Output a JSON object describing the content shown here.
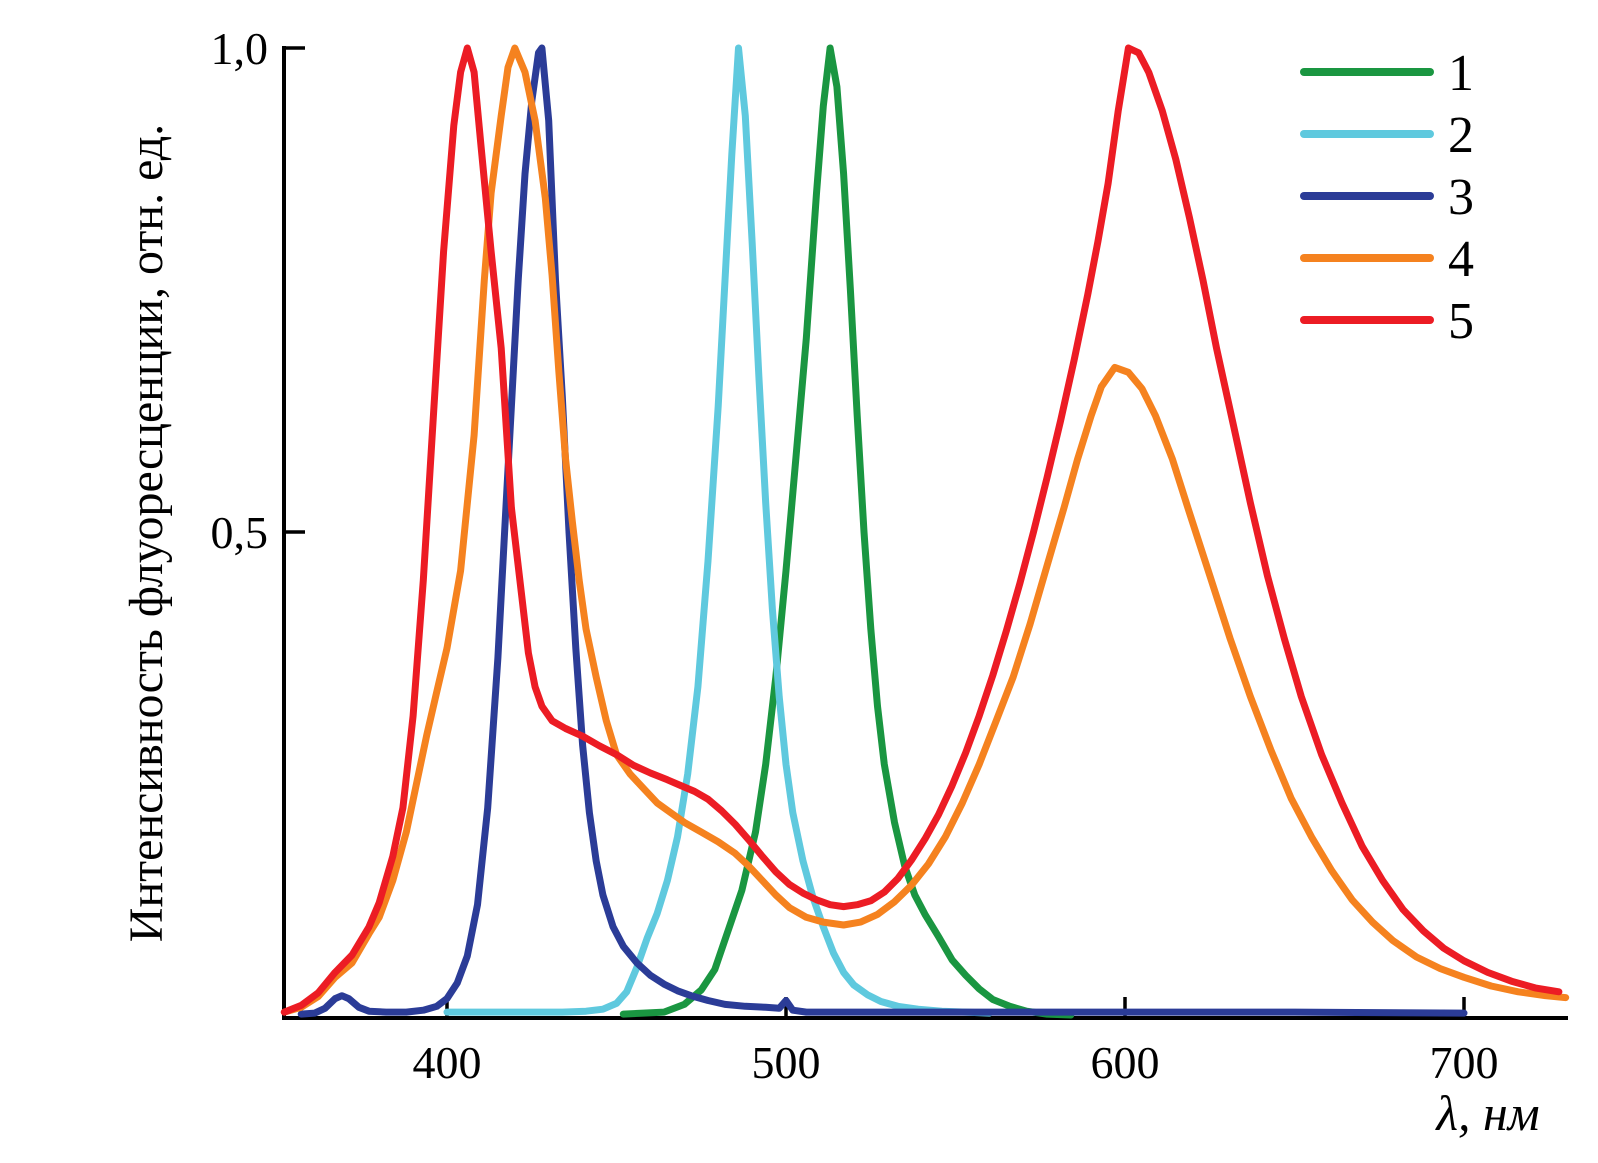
{
  "chart_data": {
    "type": "line",
    "title": "",
    "xlabel": "λ, нм",
    "ylabel": "Интенсивность флуоресценции, отн. ед.",
    "xlim": [
      352,
      731
    ],
    "ylim": [
      0,
      1.0
    ],
    "grid": false,
    "legend_position": "top-right",
    "x_ticks": [
      {
        "value": 400,
        "label": "400"
      },
      {
        "value": 500,
        "label": "500"
      },
      {
        "value": 600,
        "label": "600"
      },
      {
        "value": 700,
        "label": "700"
      }
    ],
    "y_ticks": [
      {
        "value": 1.0,
        "label": "1,0"
      },
      {
        "value": 0.5,
        "label": "0,5"
      }
    ],
    "axis_color": "#000000",
    "background_color": "#ffffff",
    "series": [
      {
        "name": "1",
        "color": "#1A9641",
        "points": [
          [
            452,
            0.002
          ],
          [
            458,
            0.003
          ],
          [
            464,
            0.004
          ],
          [
            470,
            0.012
          ],
          [
            475,
            0.027
          ],
          [
            479,
            0.048
          ],
          [
            483,
            0.089
          ],
          [
            487,
            0.13
          ],
          [
            491,
            0.19
          ],
          [
            494,
            0.26
          ],
          [
            497,
            0.35
          ],
          [
            500,
            0.46
          ],
          [
            503,
            0.58
          ],
          [
            506,
            0.7
          ],
          [
            509,
            0.85
          ],
          [
            511,
            0.94
          ],
          [
            513,
            1.0
          ],
          [
            515,
            0.96
          ],
          [
            517,
            0.87
          ],
          [
            519,
            0.75
          ],
          [
            521,
            0.62
          ],
          [
            523,
            0.5
          ],
          [
            525,
            0.4
          ],
          [
            527,
            0.32
          ],
          [
            529,
            0.26
          ],
          [
            532,
            0.2
          ],
          [
            535,
            0.155
          ],
          [
            538,
            0.125
          ],
          [
            541,
            0.105
          ],
          [
            545,
            0.082
          ],
          [
            549,
            0.058
          ],
          [
            553,
            0.042
          ],
          [
            557,
            0.028
          ],
          [
            561,
            0.017
          ],
          [
            566,
            0.01
          ],
          [
            571,
            0.005
          ],
          [
            577,
            0.002
          ],
          [
            584,
            0.001
          ]
        ]
      },
      {
        "name": "2",
        "color": "#5FC9DE",
        "points": [
          [
            400,
            0.004
          ],
          [
            412,
            0.004
          ],
          [
            424,
            0.004
          ],
          [
            434,
            0.004
          ],
          [
            441,
            0.005
          ],
          [
            446,
            0.007
          ],
          [
            450,
            0.013
          ],
          [
            453,
            0.025
          ],
          [
            456,
            0.05
          ],
          [
            459,
            0.08
          ],
          [
            462,
            0.106
          ],
          [
            465,
            0.14
          ],
          [
            468,
            0.185
          ],
          [
            471,
            0.25
          ],
          [
            474,
            0.34
          ],
          [
            477,
            0.47
          ],
          [
            480,
            0.63
          ],
          [
            482,
            0.76
          ],
          [
            484,
            0.89
          ],
          [
            486,
            1.0
          ],
          [
            488,
            0.93
          ],
          [
            490,
            0.8
          ],
          [
            492,
            0.66
          ],
          [
            494,
            0.53
          ],
          [
            496,
            0.42
          ],
          [
            498,
            0.33
          ],
          [
            500,
            0.26
          ],
          [
            502,
            0.21
          ],
          [
            505,
            0.16
          ],
          [
            508,
            0.122
          ],
          [
            511,
            0.092
          ],
          [
            514,
            0.065
          ],
          [
            517,
            0.045
          ],
          [
            520,
            0.032
          ],
          [
            524,
            0.022
          ],
          [
            528,
            0.015
          ],
          [
            533,
            0.01
          ],
          [
            539,
            0.007
          ],
          [
            546,
            0.005
          ],
          [
            553,
            0.004
          ],
          [
            560,
            0.003
          ]
        ]
      },
      {
        "name": "3",
        "color": "#2B3C97",
        "points": [
          [
            357,
            0.002
          ],
          [
            361,
            0.003
          ],
          [
            364,
            0.008
          ],
          [
            367,
            0.018
          ],
          [
            369,
            0.021
          ],
          [
            371,
            0.018
          ],
          [
            374,
            0.009
          ],
          [
            377,
            0.005
          ],
          [
            382,
            0.004
          ],
          [
            388,
            0.004
          ],
          [
            393,
            0.006
          ],
          [
            397,
            0.01
          ],
          [
            400,
            0.018
          ],
          [
            403,
            0.034
          ],
          [
            406,
            0.062
          ],
          [
            409,
            0.115
          ],
          [
            412,
            0.215
          ],
          [
            415,
            0.37
          ],
          [
            417,
            0.5
          ],
          [
            419,
            0.63
          ],
          [
            421,
            0.76
          ],
          [
            423,
            0.87
          ],
          [
            425,
            0.945
          ],
          [
            427,
            0.995
          ],
          [
            428,
            1.0
          ],
          [
            430,
            0.925
          ],
          [
            432,
            0.76
          ],
          [
            434,
            0.64
          ],
          [
            436,
            0.5
          ],
          [
            438,
            0.38
          ],
          [
            440,
            0.28
          ],
          [
            442,
            0.21
          ],
          [
            444,
            0.16
          ],
          [
            446,
            0.125
          ],
          [
            449,
            0.092
          ],
          [
            452,
            0.072
          ],
          [
            456,
            0.055
          ],
          [
            460,
            0.042
          ],
          [
            464,
            0.033
          ],
          [
            468,
            0.026
          ],
          [
            472,
            0.021
          ],
          [
            477,
            0.016
          ],
          [
            482,
            0.012
          ],
          [
            488,
            0.01
          ],
          [
            494,
            0.009
          ],
          [
            498,
            0.008
          ],
          [
            500,
            0.016
          ],
          [
            502,
            0.006
          ],
          [
            506,
            0.004
          ],
          [
            520,
            0.004
          ],
          [
            550,
            0.004
          ],
          [
            600,
            0.004
          ],
          [
            650,
            0.004
          ],
          [
            700,
            0.003
          ]
        ]
      },
      {
        "name": "4",
        "color": "#F5821F",
        "points": [
          [
            352,
            0.004
          ],
          [
            357,
            0.009
          ],
          [
            362,
            0.02
          ],
          [
            367,
            0.04
          ],
          [
            372,
            0.055
          ],
          [
            377,
            0.085
          ],
          [
            380,
            0.102
          ],
          [
            384,
            0.14
          ],
          [
            388,
            0.19
          ],
          [
            391,
            0.24
          ],
          [
            394,
            0.29
          ],
          [
            397,
            0.335
          ],
          [
            400,
            0.38
          ],
          [
            404,
            0.46
          ],
          [
            408,
            0.6
          ],
          [
            411,
            0.76
          ],
          [
            413,
            0.85
          ],
          [
            416,
            0.93
          ],
          [
            418,
            0.98
          ],
          [
            420,
            1.0
          ],
          [
            423,
            0.975
          ],
          [
            426,
            0.925
          ],
          [
            429,
            0.845
          ],
          [
            431,
            0.765
          ],
          [
            433,
            0.665
          ],
          [
            435,
            0.575
          ],
          [
            437,
            0.51
          ],
          [
            439,
            0.45
          ],
          [
            441,
            0.4
          ],
          [
            444,
            0.35
          ],
          [
            447,
            0.305
          ],
          [
            450,
            0.27
          ],
          [
            454,
            0.25
          ],
          [
            458,
            0.235
          ],
          [
            462,
            0.22
          ],
          [
            466,
            0.21
          ],
          [
            470,
            0.2
          ],
          [
            475,
            0.19
          ],
          [
            480,
            0.18
          ],
          [
            485,
            0.168
          ],
          [
            489,
            0.155
          ],
          [
            493,
            0.14
          ],
          [
            497,
            0.125
          ],
          [
            501,
            0.112
          ],
          [
            506,
            0.102
          ],
          [
            511,
            0.097
          ],
          [
            517,
            0.094
          ],
          [
            522,
            0.097
          ],
          [
            527,
            0.105
          ],
          [
            532,
            0.118
          ],
          [
            537,
            0.135
          ],
          [
            542,
            0.157
          ],
          [
            547,
            0.185
          ],
          [
            552,
            0.22
          ],
          [
            557,
            0.26
          ],
          [
            562,
            0.305
          ],
          [
            567,
            0.35
          ],
          [
            572,
            0.405
          ],
          [
            577,
            0.465
          ],
          [
            582,
            0.525
          ],
          [
            586,
            0.575
          ],
          [
            590,
            0.62
          ],
          [
            593,
            0.65
          ],
          [
            597,
            0.67
          ],
          [
            601,
            0.665
          ],
          [
            605,
            0.648
          ],
          [
            609,
            0.62
          ],
          [
            614,
            0.575
          ],
          [
            619,
            0.52
          ],
          [
            625,
            0.455
          ],
          [
            631,
            0.39
          ],
          [
            637,
            0.33
          ],
          [
            643,
            0.275
          ],
          [
            649,
            0.225
          ],
          [
            655,
            0.185
          ],
          [
            661,
            0.15
          ],
          [
            667,
            0.12
          ],
          [
            673,
            0.097
          ],
          [
            679,
            0.078
          ],
          [
            686,
            0.061
          ],
          [
            693,
            0.049
          ],
          [
            700,
            0.04
          ],
          [
            708,
            0.031
          ],
          [
            716,
            0.025
          ],
          [
            724,
            0.021
          ],
          [
            730,
            0.019
          ]
        ]
      },
      {
        "name": "5",
        "color": "#EC1C24",
        "points": [
          [
            352,
            0.004
          ],
          [
            357,
            0.011
          ],
          [
            362,
            0.024
          ],
          [
            367,
            0.045
          ],
          [
            372,
            0.063
          ],
          [
            377,
            0.092
          ],
          [
            380,
            0.117
          ],
          [
            384,
            0.165
          ],
          [
            387,
            0.215
          ],
          [
            390,
            0.31
          ],
          [
            393,
            0.45
          ],
          [
            396,
            0.62
          ],
          [
            399,
            0.79
          ],
          [
            402,
            0.92
          ],
          [
            404,
            0.975
          ],
          [
            406,
            1.0
          ],
          [
            408,
            0.975
          ],
          [
            410,
            0.9
          ],
          [
            413,
            0.79
          ],
          [
            416,
            0.69
          ],
          [
            419,
            0.525
          ],
          [
            422,
            0.435
          ],
          [
            424,
            0.375
          ],
          [
            426,
            0.34
          ],
          [
            428,
            0.32
          ],
          [
            431,
            0.305
          ],
          [
            435,
            0.297
          ],
          [
            440,
            0.289
          ],
          [
            445,
            0.279
          ],
          [
            450,
            0.27
          ],
          [
            455,
            0.259
          ],
          [
            460,
            0.251
          ],
          [
            465,
            0.244
          ],
          [
            469,
            0.238
          ],
          [
            473,
            0.232
          ],
          [
            477,
            0.224
          ],
          [
            481,
            0.212
          ],
          [
            485,
            0.198
          ],
          [
            489,
            0.182
          ],
          [
            493,
            0.165
          ],
          [
            497,
            0.149
          ],
          [
            501,
            0.136
          ],
          [
            505,
            0.127
          ],
          [
            509,
            0.12
          ],
          [
            513,
            0.115
          ],
          [
            517,
            0.113
          ],
          [
            521,
            0.115
          ],
          [
            525,
            0.119
          ],
          [
            529,
            0.128
          ],
          [
            533,
            0.142
          ],
          [
            537,
            0.161
          ],
          [
            541,
            0.183
          ],
          [
            545,
            0.208
          ],
          [
            549,
            0.238
          ],
          [
            553,
            0.272
          ],
          [
            557,
            0.31
          ],
          [
            561,
            0.352
          ],
          [
            565,
            0.398
          ],
          [
            569,
            0.447
          ],
          [
            573,
            0.5
          ],
          [
            577,
            0.556
          ],
          [
            581,
            0.615
          ],
          [
            585,
            0.678
          ],
          [
            589,
            0.745
          ],
          [
            592,
            0.8
          ],
          [
            595,
            0.86
          ],
          [
            598,
            0.935
          ],
          [
            601,
            1.0
          ],
          [
            604,
            0.995
          ],
          [
            607,
            0.975
          ],
          [
            611,
            0.935
          ],
          [
            615,
            0.885
          ],
          [
            619,
            0.825
          ],
          [
            623,
            0.76
          ],
          [
            627,
            0.69
          ],
          [
            632,
            0.61
          ],
          [
            637,
            0.53
          ],
          [
            642,
            0.455
          ],
          [
            647,
            0.39
          ],
          [
            652,
            0.33
          ],
          [
            658,
            0.27
          ],
          [
            664,
            0.22
          ],
          [
            670,
            0.175
          ],
          [
            676,
            0.14
          ],
          [
            682,
            0.11
          ],
          [
            688,
            0.088
          ],
          [
            694,
            0.07
          ],
          [
            700,
            0.057
          ],
          [
            707,
            0.045
          ],
          [
            714,
            0.036
          ],
          [
            721,
            0.029
          ],
          [
            728,
            0.025
          ]
        ]
      }
    ]
  }
}
